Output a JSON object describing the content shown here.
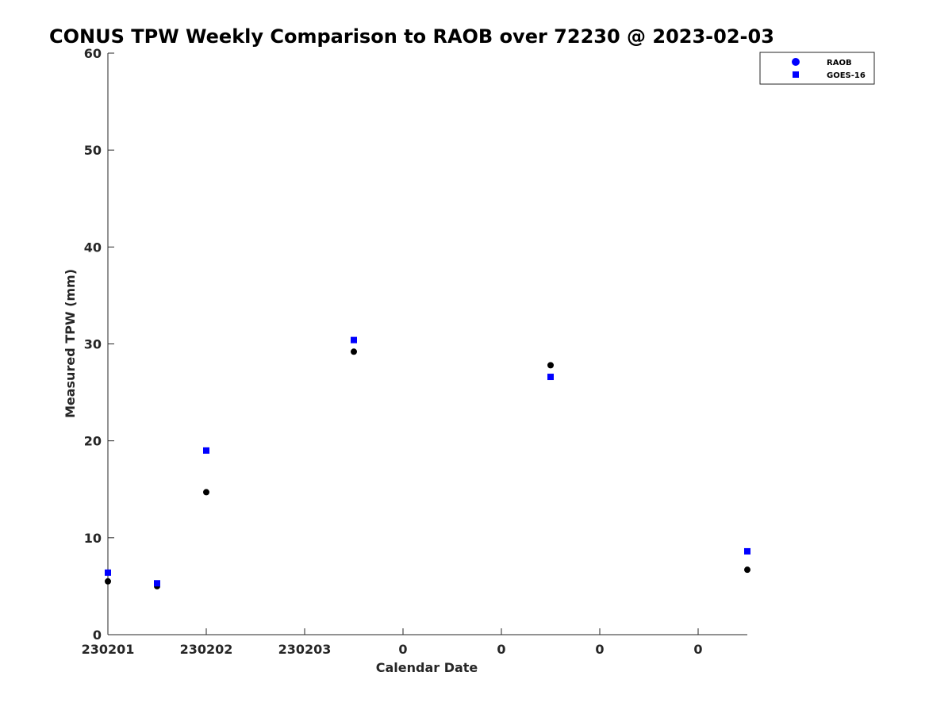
{
  "chart_data": {
    "type": "scatter",
    "title": "CONUS TPW Weekly Comparison to RAOB over 72230 @ 2023-02-03",
    "xlabel": "Calendar Date",
    "ylabel": "Measured TPW (mm)",
    "ylim": [
      0,
      60
    ],
    "yticks": [
      0,
      10,
      20,
      30,
      40,
      50,
      60
    ],
    "xlim": [
      0,
      6.5
    ],
    "xticks": [
      {
        "x": 0,
        "label": "230201"
      },
      {
        "x": 1,
        "label": "230202"
      },
      {
        "x": 2,
        "label": "230203"
      },
      {
        "x": 3,
        "label": "0"
      },
      {
        "x": 4,
        "label": "0"
      },
      {
        "x": 5,
        "label": "0"
      },
      {
        "x": 6,
        "label": "0"
      }
    ],
    "legend_position": "top-right",
    "series": [
      {
        "name": "RAOB",
        "marker": "circle",
        "color": "#000000",
        "legend_color": "#0000ff",
        "points": [
          {
            "x": 0.0,
            "y": 5.5
          },
          {
            "x": 0.5,
            "y": 5.0
          },
          {
            "x": 1.0,
            "y": 14.7
          },
          {
            "x": 2.5,
            "y": 29.2
          },
          {
            "x": 4.5,
            "y": 27.8
          },
          {
            "x": 6.5,
            "y": 6.7
          }
        ]
      },
      {
        "name": "GOES-16",
        "marker": "square",
        "color": "#0000ff",
        "legend_color": "#0000ff",
        "points": [
          {
            "x": 0.0,
            "y": 6.4
          },
          {
            "x": 0.5,
            "y": 5.3
          },
          {
            "x": 1.0,
            "y": 19.0
          },
          {
            "x": 2.5,
            "y": 30.4
          },
          {
            "x": 4.5,
            "y": 26.6
          },
          {
            "x": 6.5,
            "y": 8.6
          }
        ]
      }
    ]
  }
}
